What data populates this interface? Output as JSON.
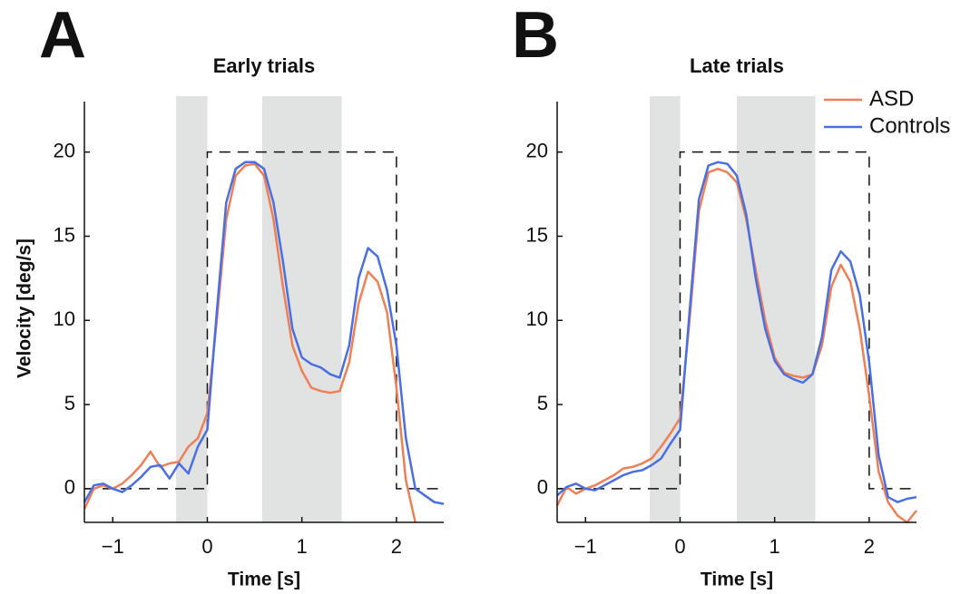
{
  "chart_data": [
    {
      "type": "line",
      "panel_label": "A",
      "title": "Early trials",
      "xlabel": "Time [s]",
      "ylabel": "Velocity [deg/s]",
      "xlim": [
        -1.3,
        2.5
      ],
      "ylim": [
        -2,
        23
      ],
      "xticks": [
        {
          "value": -1,
          "label": "−1"
        },
        0,
        1,
        2
      ],
      "yticks": [
        0,
        5,
        10,
        15,
        20
      ],
      "shaded_regions": [
        [
          -0.33,
          0
        ],
        [
          0.58,
          1.42
        ]
      ],
      "reference": {
        "x": [
          -1.3,
          0,
          0,
          2,
          2,
          2.5
        ],
        "values": [
          0,
          0,
          20,
          20,
          0,
          0
        ]
      },
      "x": [
        -1.3,
        -1.2,
        -1.1,
        -1.0,
        -0.9,
        -0.8,
        -0.7,
        -0.6,
        -0.5,
        -0.4,
        -0.3,
        -0.2,
        -0.1,
        0,
        0.1,
        0.2,
        0.3,
        0.4,
        0.5,
        0.6,
        0.7,
        0.8,
        0.9,
        1.0,
        1.1,
        1.2,
        1.3,
        1.4,
        1.5,
        1.6,
        1.7,
        1.8,
        1.9,
        2.0,
        2.1,
        2.2,
        2.3,
        2.4,
        2.5
      ],
      "series": [
        {
          "name": "ASD",
          "color": "#ef7f55",
          "values": [
            -1.2,
            0.0,
            0.2,
            0.0,
            0.3,
            0.8,
            1.4,
            2.2,
            1.3,
            1.5,
            1.6,
            2.5,
            3.0,
            4.5,
            10,
            16,
            18.6,
            19.2,
            19.3,
            18.6,
            16,
            12,
            8.5,
            7.0,
            6.0,
            5.8,
            5.7,
            5.8,
            7.5,
            11,
            12.9,
            12.3,
            10.5,
            6,
            0.5,
            -2.0,
            null,
            null,
            null
          ]
        },
        {
          "name": "Controls",
          "color": "#4a6fe3",
          "values": [
            -0.8,
            0.2,
            0.3,
            0.0,
            -0.2,
            0.2,
            0.7,
            1.3,
            1.4,
            0.6,
            1.5,
            0.9,
            2.5,
            3.5,
            10.5,
            17,
            19,
            19.4,
            19.4,
            19,
            17,
            13.5,
            9.5,
            7.8,
            7.4,
            7.2,
            6.8,
            6.6,
            8.5,
            12.5,
            14.3,
            13.8,
            11.8,
            8.5,
            3,
            0,
            -0.4,
            -0.8,
            -0.9
          ]
        }
      ]
    },
    {
      "type": "line",
      "panel_label": "B",
      "title": "Late trials",
      "xlabel": "Time [s]",
      "legend": "upper right",
      "xlim": [
        -1.3,
        2.5
      ],
      "ylim": [
        -2,
        23
      ],
      "xticks": [
        {
          "value": -1,
          "label": "−1"
        },
        0,
        1,
        2
      ],
      "yticks": [
        0,
        5,
        10,
        15,
        20
      ],
      "shaded_regions": [
        [
          -0.32,
          0
        ],
        [
          0.6,
          1.43
        ]
      ],
      "reference": {
        "x": [
          -1.3,
          0,
          0,
          2,
          2,
          2.5
        ],
        "values": [
          0,
          0,
          20,
          20,
          0,
          0
        ]
      },
      "x": [
        -1.3,
        -1.2,
        -1.1,
        -1.0,
        -0.9,
        -0.8,
        -0.7,
        -0.6,
        -0.5,
        -0.4,
        -0.3,
        -0.2,
        -0.1,
        0,
        0.1,
        0.2,
        0.3,
        0.4,
        0.5,
        0.6,
        0.7,
        0.8,
        0.9,
        1.0,
        1.1,
        1.2,
        1.3,
        1.4,
        1.5,
        1.6,
        1.7,
        1.8,
        1.9,
        2.0,
        2.1,
        2.2,
        2.3,
        2.4,
        2.5
      ],
      "series": [
        {
          "name": "ASD",
          "color": "#ef7f55",
          "values": [
            -1.0,
            0.1,
            -0.3,
            0.0,
            0.2,
            0.5,
            0.8,
            1.2,
            1.3,
            1.5,
            1.8,
            2.5,
            3.3,
            4.2,
            10,
            16.5,
            18.8,
            19,
            18.8,
            18.2,
            16,
            13,
            10,
            7.8,
            6.9,
            6.7,
            6.6,
            6.8,
            8.5,
            12,
            13.3,
            12.3,
            9.5,
            5.5,
            1,
            -0.8,
            -1.6,
            -2.0,
            -1.3
          ]
        },
        {
          "name": "Controls",
          "color": "#4a6fe3",
          "values": [
            -0.4,
            0.1,
            0.3,
            0.0,
            -0.1,
            0.2,
            0.5,
            0.8,
            1.0,
            1.1,
            1.4,
            1.8,
            2.7,
            3.5,
            10.5,
            17.2,
            19.2,
            19.4,
            19.3,
            18.6,
            16.3,
            12.5,
            9.5,
            7.6,
            6.8,
            6.5,
            6.3,
            6.8,
            9,
            13,
            14.1,
            13.5,
            11.5,
            7.5,
            2,
            -0.5,
            -0.8,
            -0.6,
            -0.5
          ]
        }
      ]
    }
  ]
}
